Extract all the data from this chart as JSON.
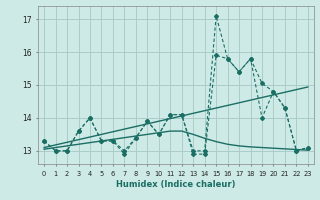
{
  "xlabel": "Humidex (Indice chaleur)",
  "background_color": "#ceeae6",
  "grid_color": "#aaccc8",
  "line_color": "#1a6e64",
  "x_values": [
    0,
    1,
    2,
    3,
    4,
    5,
    6,
    7,
    8,
    9,
    10,
    11,
    12,
    13,
    14,
    15,
    16,
    17,
    18,
    19,
    20,
    21,
    22,
    23
  ],
  "series1": [
    13.3,
    13.0,
    13.0,
    13.6,
    14.0,
    13.3,
    13.3,
    12.9,
    13.4,
    13.9,
    13.5,
    14.1,
    14.1,
    13.0,
    13.0,
    17.1,
    15.8,
    15.4,
    15.8,
    15.05,
    14.8,
    14.3,
    13.0,
    13.1
  ],
  "series2": [
    13.3,
    13.0,
    13.0,
    13.6,
    14.0,
    13.3,
    13.3,
    13.0,
    13.4,
    13.9,
    13.5,
    14.1,
    14.1,
    12.9,
    12.9,
    15.9,
    15.8,
    15.4,
    15.8,
    14.0,
    14.8,
    14.3,
    13.0,
    13.1
  ],
  "trend_up": [
    13.1,
    13.18,
    13.26,
    13.34,
    13.42,
    13.5,
    13.58,
    13.66,
    13.74,
    13.82,
    13.9,
    13.98,
    14.06,
    14.14,
    14.22,
    14.3,
    14.38,
    14.46,
    14.54,
    14.62,
    14.7,
    14.78,
    14.86,
    14.94
  ],
  "trend_flat": [
    13.05,
    13.1,
    13.15,
    13.2,
    13.25,
    13.3,
    13.35,
    13.4,
    13.45,
    13.5,
    13.55,
    13.6,
    13.6,
    13.5,
    13.38,
    13.28,
    13.2,
    13.15,
    13.12,
    13.1,
    13.08,
    13.06,
    13.04,
    13.02
  ],
  "ylim_low": 12.6,
  "ylim_high": 17.4,
  "yticks": [
    13,
    14,
    15,
    16,
    17
  ],
  "xticks": [
    0,
    1,
    2,
    3,
    4,
    5,
    6,
    7,
    8,
    9,
    10,
    11,
    12,
    13,
    14,
    15,
    16,
    17,
    18,
    19,
    20,
    21,
    22,
    23
  ]
}
